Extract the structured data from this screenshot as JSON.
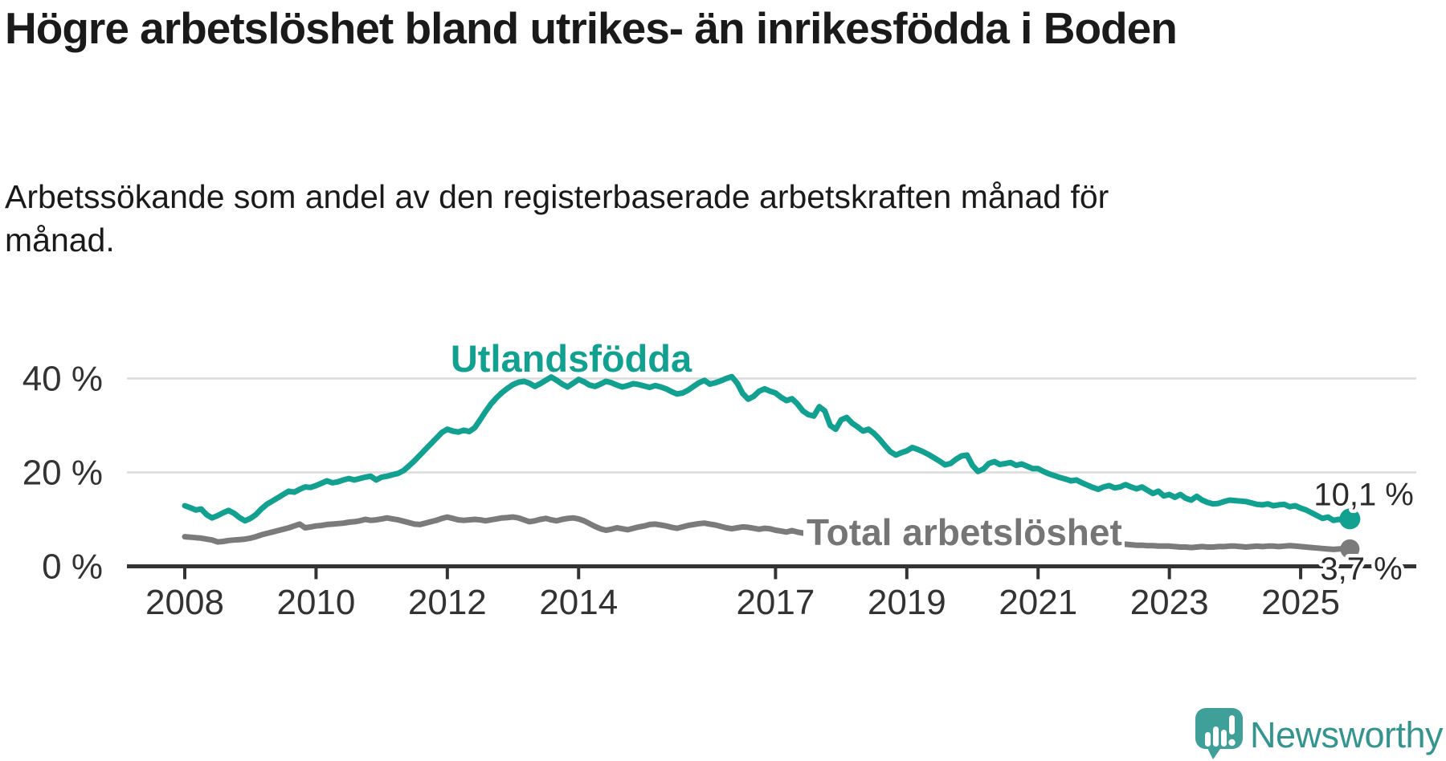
{
  "header": {
    "title": "Högre arbetslöshet bland utrikes- än inrikesfödda i Boden",
    "subtitle": "Arbetssökande som andel av den registerbaserade arbetskraften månad för månad."
  },
  "chart_data": {
    "type": "line",
    "title": "Högre arbetslöshet bland utrikes- än inrikesfödda i Boden",
    "subtitle": "Arbetssökande som andel av den registerbaserade arbetskraften månad för månad.",
    "x_start_year": 2008,
    "x_step_months": 1,
    "xlim": [
      2008,
      2025.83
    ],
    "ylim": [
      0,
      43
    ],
    "grid": "horizontal",
    "yticks": [
      {
        "label": "40 %",
        "value": 40
      },
      {
        "label": "20 %",
        "value": 20
      },
      {
        "label": "0 %",
        "value": 0
      }
    ],
    "xticks": [
      {
        "label": "2008",
        "year": 2008
      },
      {
        "label": "2010",
        "year": 2010
      },
      {
        "label": "2012",
        "year": 2012
      },
      {
        "label": "2014",
        "year": 2014
      },
      {
        "label": "2017",
        "year": 2017
      },
      {
        "label": "2019",
        "year": 2019
      },
      {
        "label": "2021",
        "year": 2021
      },
      {
        "label": "2023",
        "year": 2023
      },
      {
        "label": "2025",
        "year": 2025
      }
    ],
    "series": [
      {
        "name": "Utlandsfödda",
        "color": "#12a091",
        "end_label": "10,1 %",
        "end_value": 10.1,
        "values": [
          12.9,
          12.5,
          12.0,
          12.2,
          11.0,
          10.3,
          10.8,
          11.4,
          11.9,
          11.3,
          10.4,
          9.7,
          10.2,
          11.0,
          12.2,
          13.2,
          13.9,
          14.6,
          15.3,
          16.0,
          15.8,
          16.4,
          16.9,
          16.8,
          17.2,
          17.7,
          18.2,
          17.8,
          18.0,
          18.4,
          18.7,
          18.4,
          18.7,
          19.0,
          19.2,
          18.4,
          19.0,
          19.2,
          19.5,
          19.8,
          20.4,
          21.4,
          22.5,
          23.7,
          24.9,
          26.1,
          27.3,
          28.5,
          29.2,
          28.8,
          28.6,
          29.0,
          28.7,
          29.5,
          31.2,
          33.0,
          34.6,
          35.9,
          37.0,
          37.9,
          38.7,
          39.2,
          39.4,
          39.0,
          38.3,
          38.9,
          39.6,
          40.3,
          39.6,
          38.8,
          38.2,
          39.0,
          39.8,
          39.3,
          38.6,
          38.3,
          38.8,
          39.4,
          39.1,
          38.6,
          38.2,
          38.5,
          38.9,
          38.7,
          38.4,
          38.1,
          38.5,
          38.2,
          37.8,
          37.2,
          36.7,
          36.9,
          37.5,
          38.3,
          39.1,
          39.6,
          38.8,
          39.1,
          39.5,
          40.0,
          40.4,
          39.0,
          36.8,
          35.6,
          36.2,
          37.3,
          37.8,
          37.3,
          36.9,
          36.0,
          35.3,
          35.7,
          34.6,
          33.1,
          32.3,
          32.0,
          34.0,
          33.1,
          30.0,
          29.2,
          31.2,
          31.7,
          30.5,
          29.7,
          28.8,
          29.2,
          28.3,
          27.1,
          25.7,
          24.4,
          23.7,
          24.2,
          24.6,
          25.3,
          24.9,
          24.4,
          23.8,
          23.1,
          22.4,
          21.6,
          21.9,
          22.8,
          23.5,
          23.7,
          21.5,
          20.2,
          20.7,
          21.9,
          22.3,
          21.7,
          21.9,
          22.1,
          21.5,
          21.8,
          21.3,
          20.8,
          20.8,
          20.2,
          19.7,
          19.3,
          18.9,
          18.6,
          18.2,
          18.4,
          17.8,
          17.3,
          16.8,
          16.4,
          16.9,
          17.2,
          16.7,
          16.9,
          17.4,
          16.9,
          16.5,
          16.9,
          16.2,
          15.5,
          16.0,
          15.0,
          15.3,
          14.7,
          15.3,
          14.5,
          14.1,
          14.9,
          14.1,
          13.6,
          13.3,
          13.4,
          13.8,
          14.1,
          14.0,
          13.9,
          13.8,
          13.5,
          13.2,
          13.1,
          13.3,
          12.9,
          13.1,
          13.2,
          12.7,
          12.9,
          12.4,
          12.0,
          11.4,
          10.8,
          10.2,
          10.5,
          9.8,
          10.0,
          9.7,
          10.1
        ]
      },
      {
        "name": "Total arbetslöshet",
        "color": "#7b7b7b",
        "end_label": "3,7 %",
        "end_value": 3.7,
        "values": [
          6.3,
          6.2,
          6.1,
          6.0,
          5.8,
          5.6,
          5.2,
          5.3,
          5.5,
          5.6,
          5.7,
          5.8,
          6.0,
          6.3,
          6.7,
          7.0,
          7.3,
          7.6,
          7.9,
          8.2,
          8.6,
          9.0,
          8.2,
          8.4,
          8.6,
          8.7,
          8.9,
          9.0,
          9.1,
          9.2,
          9.4,
          9.5,
          9.7,
          10.0,
          9.8,
          9.9,
          10.1,
          10.3,
          10.1,
          9.9,
          9.6,
          9.3,
          9.0,
          8.9,
          9.2,
          9.5,
          9.8,
          10.2,
          10.5,
          10.2,
          9.9,
          9.8,
          9.9,
          10.0,
          9.9,
          9.7,
          9.9,
          10.1,
          10.3,
          10.4,
          10.5,
          10.3,
          9.9,
          9.5,
          9.7,
          10.0,
          10.2,
          9.9,
          9.7,
          10.0,
          10.2,
          10.3,
          10.1,
          9.7,
          9.1,
          8.5,
          8.0,
          7.7,
          7.9,
          8.2,
          8.0,
          7.8,
          8.1,
          8.4,
          8.6,
          8.9,
          9.0,
          8.8,
          8.6,
          8.3,
          8.1,
          8.4,
          8.7,
          8.9,
          9.1,
          9.2,
          9.0,
          8.8,
          8.5,
          8.2,
          8.0,
          8.2,
          8.4,
          8.3,
          8.1,
          7.9,
          8.1,
          8.0,
          7.7,
          7.5,
          7.3,
          7.6,
          7.3,
          7.1,
          7.0,
          6.9,
          6.8,
          6.7,
          6.6,
          6.6,
          6.5,
          6.4,
          6.3,
          6.2,
          6.1,
          6.0,
          5.9,
          5.9,
          5.8,
          5.8,
          5.7,
          5.7,
          5.6,
          5.6,
          5.5,
          5.5,
          5.4,
          5.4,
          5.3,
          5.3,
          5.4,
          5.5,
          5.6,
          5.7,
          5.8,
          5.9,
          6.1,
          6.4,
          6.6,
          6.7,
          6.6,
          6.5,
          6.4,
          6.3,
          6.2,
          6.2,
          6.1,
          6.0,
          5.9,
          5.8,
          5.6,
          5.5,
          5.4,
          5.3,
          5.2,
          5.1,
          5.0,
          5.0,
          4.9,
          4.9,
          4.8,
          4.8,
          4.7,
          4.6,
          4.5,
          4.5,
          4.4,
          4.4,
          4.3,
          4.3,
          4.3,
          4.2,
          4.1,
          4.1,
          4.0,
          4.1,
          4.2,
          4.1,
          4.1,
          4.2,
          4.2,
          4.3,
          4.3,
          4.2,
          4.1,
          4.2,
          4.3,
          4.2,
          4.3,
          4.3,
          4.2,
          4.3,
          4.4,
          4.3,
          4.2,
          4.1,
          4.0,
          3.9,
          3.8,
          3.7,
          3.6,
          3.7,
          3.8,
          3.7
        ]
      }
    ]
  },
  "branding": {
    "logo_text": "Newsworthy",
    "logo_color": "#34948e",
    "icon": "speech-bubble-bar-chart-icon",
    "icon_color": "#3fa09a"
  }
}
